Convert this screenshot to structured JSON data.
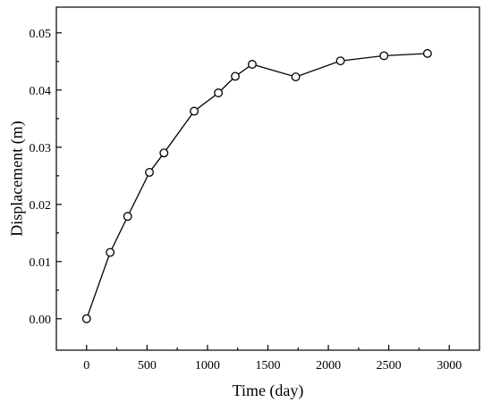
{
  "chart_data": {
    "type": "line",
    "title": "",
    "xlabel": "Time (day)",
    "ylabel": "Displacement (m)",
    "xlim": [
      -250,
      3250
    ],
    "ylim": [
      -0.0055,
      0.0545
    ],
    "x_ticks": [
      0,
      500,
      1000,
      1500,
      2000,
      2500,
      3000
    ],
    "x_tick_labels": [
      "0",
      "500",
      "1000",
      "1500",
      "2000",
      "2500",
      "3000"
    ],
    "y_ticks": [
      0.0,
      0.01,
      0.02,
      0.03,
      0.04,
      0.05
    ],
    "y_tick_labels": [
      "0.00",
      "0.01",
      "0.02",
      "0.03",
      "0.04",
      "0.05"
    ],
    "grid": false,
    "legend": "none",
    "marker": "open-circle",
    "line_color": "#000000",
    "series": [
      {
        "x": [
          0,
          195,
          340,
          520,
          640,
          890,
          1090,
          1230,
          1370,
          1730,
          2100,
          2460,
          2820
        ],
        "y": [
          0.0,
          0.0116,
          0.0179,
          0.0256,
          0.029,
          0.0363,
          0.0395,
          0.0424,
          0.0445,
          0.0423,
          0.0451,
          0.046,
          0.0464
        ]
      }
    ]
  }
}
